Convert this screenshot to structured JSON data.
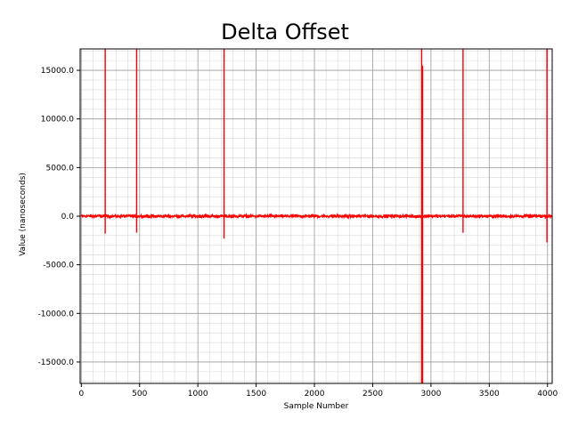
{
  "chart_data": {
    "type": "line",
    "title": "Delta Offset",
    "xlabel": "Sample Number",
    "ylabel": "Value (nanoseconds)",
    "xlim": [
      -10,
      4040
    ],
    "ylim": [
      -17200,
      17200
    ],
    "xticks": [
      0,
      500,
      1000,
      1500,
      2000,
      2500,
      3000,
      3500,
      4000
    ],
    "xtick_labels": [
      "0",
      "500",
      "1000",
      "1500",
      "2000",
      "2500",
      "3000",
      "3500",
      "4000"
    ],
    "yticks": [
      15000,
      10000,
      5000,
      0,
      -5000,
      -10000,
      -15000
    ],
    "ytick_labels": [
      "15000.0",
      "10000.0",
      "5000.0",
      "0.0",
      "-5000.0",
      "-10000.0",
      "-15000.0"
    ],
    "grid": true,
    "minor_grid": true,
    "series": [
      {
        "color": "#ff0000",
        "baseline": 0,
        "noise_amplitude": 250,
        "n_samples": 4040,
        "spikes": [
          {
            "x": 205,
            "high": 17200,
            "low": -1800
          },
          {
            "x": 475,
            "high": 17200,
            "low": -1700
          },
          {
            "x": 1225,
            "high": 17200,
            "low": -2300
          },
          {
            "x": 2920,
            "high": 17200,
            "low": -17200
          },
          {
            "x": 2928,
            "high": 15500,
            "low": -17200
          },
          {
            "x": 3275,
            "high": 17200,
            "low": -1700
          },
          {
            "x": 3995,
            "high": 17200,
            "low": -2700
          }
        ]
      }
    ]
  }
}
